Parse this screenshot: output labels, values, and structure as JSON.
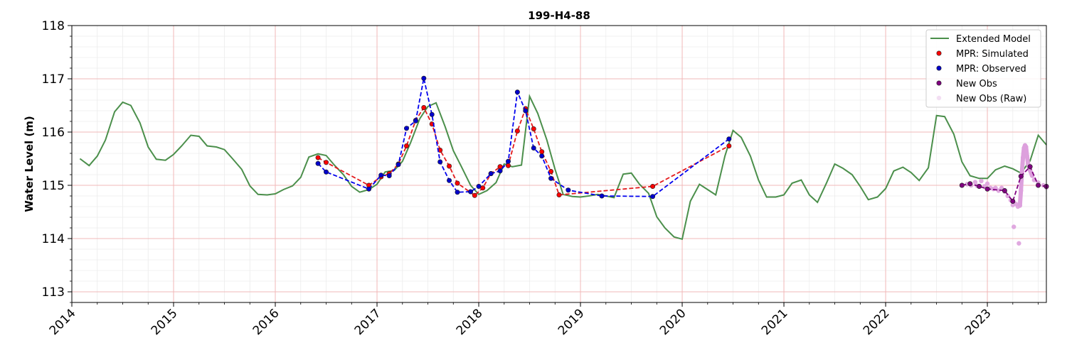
{
  "chart_data": {
    "type": "line",
    "title": "199-H4-88",
    "xlabel": "",
    "ylabel": "Water Level (m)",
    "xlim": [
      2014.0,
      2023.58
    ],
    "ylim": [
      112.8,
      118.0
    ],
    "x_ticks": [
      "2014",
      "2015",
      "2016",
      "2017",
      "2018",
      "2019",
      "2020",
      "2021",
      "2022",
      "2023"
    ],
    "y_ticks": [
      "113",
      "114",
      "115",
      "116",
      "117",
      "118"
    ],
    "grid": true,
    "legend_position": "top-right",
    "colors": {
      "extended_model": "#4b8f4b",
      "simulated": "#ff0000",
      "simulated_line": "#e41a1c",
      "observed": "#0000cc",
      "observed_line": "#0000ee",
      "new_obs": "#800080",
      "new_obs_raw": "#dda0dd",
      "major_grid": "#f2b8b8",
      "minor_grid": "#ececec"
    },
    "legend": [
      {
        "key": "extended_model",
        "label": "Extended Model",
        "kind": "line"
      },
      {
        "key": "simulated",
        "label": "MPR: Simulated",
        "kind": "marker"
      },
      {
        "key": "observed",
        "label": "MPR: Observed",
        "kind": "marker"
      },
      {
        "key": "new_obs",
        "label": "New Obs",
        "kind": "marker"
      },
      {
        "key": "new_obs_raw",
        "label": "New Obs (Raw)",
        "kind": "marker-faint"
      }
    ],
    "series": [
      {
        "name": "Extended Model",
        "style": "line",
        "points": [
          [
            2014.08,
            115.5
          ],
          [
            2014.17,
            115.37
          ],
          [
            2014.25,
            115.55
          ],
          [
            2014.33,
            115.85
          ],
          [
            2014.42,
            116.38
          ],
          [
            2014.5,
            116.56
          ],
          [
            2014.58,
            116.5
          ],
          [
            2014.67,
            116.17
          ],
          [
            2014.75,
            115.72
          ],
          [
            2014.83,
            115.49
          ],
          [
            2014.92,
            115.47
          ],
          [
            2015.0,
            115.58
          ],
          [
            2015.08,
            115.74
          ],
          [
            2015.17,
            115.94
          ],
          [
            2015.25,
            115.92
          ],
          [
            2015.33,
            115.74
          ],
          [
            2015.42,
            115.72
          ],
          [
            2015.5,
            115.67
          ],
          [
            2015.58,
            115.5
          ],
          [
            2015.67,
            115.3
          ],
          [
            2015.75,
            114.99
          ],
          [
            2015.83,
            114.83
          ],
          [
            2015.92,
            114.82
          ],
          [
            2016.0,
            114.84
          ],
          [
            2016.08,
            114.92
          ],
          [
            2016.17,
            114.99
          ],
          [
            2016.25,
            115.15
          ],
          [
            2016.33,
            115.53
          ],
          [
            2016.42,
            115.59
          ],
          [
            2016.5,
            115.56
          ],
          [
            2016.58,
            115.38
          ],
          [
            2016.67,
            115.2
          ],
          [
            2016.75,
            114.98
          ],
          [
            2016.83,
            114.87
          ],
          [
            2016.92,
            114.92
          ],
          [
            2017.0,
            115.02
          ],
          [
            2017.08,
            115.25
          ],
          [
            2017.17,
            115.28
          ],
          [
            2017.25,
            115.45
          ],
          [
            2017.33,
            115.8
          ],
          [
            2017.42,
            116.25
          ],
          [
            2017.5,
            116.48
          ],
          [
            2017.58,
            116.55
          ],
          [
            2017.67,
            116.1
          ],
          [
            2017.75,
            115.65
          ],
          [
            2017.83,
            115.35
          ],
          [
            2017.92,
            115.0
          ],
          [
            2018.0,
            114.83
          ],
          [
            2018.08,
            114.9
          ],
          [
            2018.17,
            115.05
          ],
          [
            2018.25,
            115.4
          ],
          [
            2018.33,
            115.35
          ],
          [
            2018.42,
            115.38
          ],
          [
            2018.5,
            116.67
          ],
          [
            2018.58,
            116.35
          ],
          [
            2018.67,
            115.85
          ],
          [
            2018.75,
            115.3
          ],
          [
            2018.83,
            114.83
          ],
          [
            2018.92,
            114.79
          ],
          [
            2019.0,
            114.78
          ],
          [
            2019.08,
            114.8
          ],
          [
            2019.17,
            114.83
          ],
          [
            2019.25,
            114.8
          ],
          [
            2019.33,
            114.77
          ],
          [
            2019.42,
            115.21
          ],
          [
            2019.5,
            115.23
          ],
          [
            2019.58,
            115.02
          ],
          [
            2019.67,
            114.85
          ],
          [
            2019.75,
            114.41
          ],
          [
            2019.83,
            114.2
          ],
          [
            2019.92,
            114.03
          ],
          [
            2020.0,
            113.99
          ],
          [
            2020.08,
            114.7
          ],
          [
            2020.17,
            115.02
          ],
          [
            2020.25,
            114.92
          ],
          [
            2020.33,
            114.82
          ],
          [
            2020.42,
            115.55
          ],
          [
            2020.5,
            116.03
          ],
          [
            2020.58,
            115.9
          ],
          [
            2020.67,
            115.55
          ],
          [
            2020.75,
            115.1
          ],
          [
            2020.83,
            114.78
          ],
          [
            2020.92,
            114.78
          ],
          [
            2021.0,
            114.82
          ],
          [
            2021.08,
            115.04
          ],
          [
            2021.17,
            115.1
          ],
          [
            2021.25,
            114.82
          ],
          [
            2021.33,
            114.68
          ],
          [
            2021.42,
            115.05
          ],
          [
            2021.5,
            115.4
          ],
          [
            2021.58,
            115.32
          ],
          [
            2021.67,
            115.2
          ],
          [
            2021.75,
            114.98
          ],
          [
            2021.83,
            114.73
          ],
          [
            2021.92,
            114.78
          ],
          [
            2022.0,
            114.94
          ],
          [
            2022.08,
            115.27
          ],
          [
            2022.17,
            115.34
          ],
          [
            2022.25,
            115.24
          ],
          [
            2022.33,
            115.09
          ],
          [
            2022.42,
            115.33
          ],
          [
            2022.5,
            116.31
          ],
          [
            2022.58,
            116.29
          ],
          [
            2022.67,
            115.96
          ],
          [
            2022.75,
            115.44
          ],
          [
            2022.83,
            115.18
          ],
          [
            2022.92,
            115.13
          ],
          [
            2023.0,
            115.13
          ],
          [
            2023.08,
            115.29
          ],
          [
            2023.17,
            115.36
          ],
          [
            2023.25,
            115.31
          ],
          [
            2023.33,
            115.23
          ],
          [
            2023.42,
            115.46
          ],
          [
            2023.5,
            115.94
          ],
          [
            2023.58,
            115.76
          ]
        ]
      },
      {
        "name": "MPR: Simulated",
        "style": "dashed-markers",
        "points": [
          [
            2016.42,
            115.52
          ],
          [
            2016.5,
            115.43
          ],
          [
            2016.92,
            115.0
          ],
          [
            2017.04,
            115.16
          ],
          [
            2017.12,
            115.22
          ],
          [
            2017.21,
            115.4
          ],
          [
            2017.29,
            115.74
          ],
          [
            2017.38,
            116.22
          ],
          [
            2017.46,
            116.46
          ],
          [
            2017.54,
            116.15
          ],
          [
            2017.62,
            115.66
          ],
          [
            2017.71,
            115.36
          ],
          [
            2017.79,
            115.04
          ],
          [
            2017.96,
            114.81
          ],
          [
            2018.04,
            114.95
          ],
          [
            2018.12,
            115.22
          ],
          [
            2018.21,
            115.35
          ],
          [
            2018.29,
            115.37
          ],
          [
            2018.38,
            116.02
          ],
          [
            2018.46,
            116.44
          ],
          [
            2018.54,
            116.06
          ],
          [
            2018.62,
            115.63
          ],
          [
            2018.71,
            115.26
          ],
          [
            2018.79,
            114.82
          ],
          [
            2019.71,
            114.98
          ],
          [
            2020.46,
            115.74
          ]
        ]
      },
      {
        "name": "MPR: Observed",
        "style": "dashed-markers",
        "points": [
          [
            2016.42,
            115.41
          ],
          [
            2016.5,
            115.25
          ],
          [
            2016.92,
            114.93
          ],
          [
            2017.04,
            115.19
          ],
          [
            2017.12,
            115.18
          ],
          [
            2017.21,
            115.39
          ],
          [
            2017.29,
            116.07
          ],
          [
            2017.38,
            116.21
          ],
          [
            2017.46,
            117.01
          ],
          [
            2017.54,
            116.33
          ],
          [
            2017.62,
            115.44
          ],
          [
            2017.71,
            115.09
          ],
          [
            2017.79,
            114.87
          ],
          [
            2017.92,
            114.88
          ],
          [
            2018.0,
            114.98
          ],
          [
            2018.12,
            115.22
          ],
          [
            2018.21,
            115.27
          ],
          [
            2018.29,
            115.45
          ],
          [
            2018.38,
            116.75
          ],
          [
            2018.46,
            116.4
          ],
          [
            2018.54,
            115.7
          ],
          [
            2018.62,
            115.55
          ],
          [
            2018.71,
            115.13
          ],
          [
            2018.88,
            114.91
          ],
          [
            2019.21,
            114.8
          ],
          [
            2019.71,
            114.79
          ],
          [
            2020.46,
            115.87
          ]
        ]
      },
      {
        "name": "New Obs",
        "style": "dashed-markers",
        "points": [
          [
            2022.75,
            115.0
          ],
          [
            2022.83,
            115.03
          ],
          [
            2022.92,
            114.98
          ],
          [
            2023.0,
            114.93
          ],
          [
            2023.17,
            114.9
          ],
          [
            2023.25,
            114.7
          ],
          [
            2023.33,
            115.17
          ],
          [
            2023.42,
            115.35
          ],
          [
            2023.5,
            115.0
          ],
          [
            2023.58,
            114.98
          ]
        ]
      },
      {
        "name": "New Obs (Raw)",
        "style": "markers",
        "points": [
          [
            2022.8,
            115.02
          ],
          [
            2022.84,
            115.0
          ],
          [
            2022.88,
            115.06
          ],
          [
            2022.9,
            114.99
          ],
          [
            2022.94,
            115.08
          ],
          [
            2022.97,
            114.98
          ],
          [
            2023.0,
            115.03
          ],
          [
            2023.03,
            114.95
          ],
          [
            2023.06,
            114.93
          ],
          [
            2023.08,
            114.95
          ],
          [
            2023.11,
            114.9
          ],
          [
            2023.14,
            114.95
          ],
          [
            2023.17,
            114.88
          ],
          [
            2023.2,
            114.8
          ],
          [
            2023.23,
            114.72
          ],
          [
            2023.25,
            114.63
          ],
          [
            2023.26,
            114.22
          ],
          [
            2023.28,
            114.65
          ],
          [
            2023.3,
            114.6
          ],
          [
            2023.31,
            113.91
          ],
          [
            2023.32,
            114.62
          ],
          [
            2023.33,
            114.9
          ],
          [
            2023.34,
            115.25
          ],
          [
            2023.35,
            115.52
          ],
          [
            2023.36,
            115.7
          ],
          [
            2023.37,
            115.75
          ],
          [
            2023.38,
            115.72
          ],
          [
            2023.39,
            115.55
          ],
          [
            2023.4,
            115.4
          ],
          [
            2023.42,
            115.28
          ],
          [
            2023.44,
            115.18
          ],
          [
            2023.46,
            115.1
          ],
          [
            2023.5,
            115.05
          ],
          [
            2023.55,
            115.0
          ],
          [
            2023.58,
            114.96
          ]
        ]
      }
    ]
  }
}
